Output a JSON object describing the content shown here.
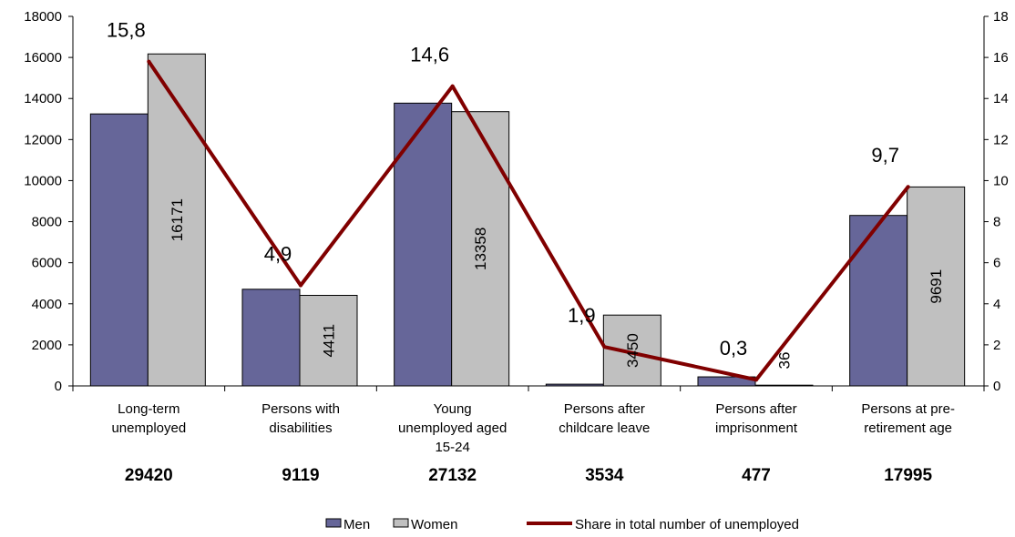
{
  "chart_data": {
    "type": "bar",
    "categories": [
      [
        "Long-term",
        "unemployed"
      ],
      [
        "Persons with",
        "disabilities"
      ],
      [
        "Young",
        "unemployed aged",
        "15-24"
      ],
      [
        "Persons after",
        "childcare leave"
      ],
      [
        "Persons after",
        "imprisonment"
      ],
      [
        "Persons at pre-",
        "retirement age"
      ]
    ],
    "totals": [
      "29420",
      "9119",
      "27132",
      "3534",
      "477",
      "17995"
    ],
    "series": [
      {
        "name": "Men",
        "values": [
          13249,
          4708,
          13774,
          84,
          441,
          8304
        ],
        "color": "#666699"
      },
      {
        "name": "Women",
        "values": [
          16171,
          4411,
          13358,
          3450,
          36,
          9691
        ],
        "color": "#c0c0c0",
        "labels": [
          "16171",
          "4411",
          "13358",
          "3450",
          "36",
          "9691"
        ]
      }
    ],
    "line_series": {
      "name": "Share in total number of unemployed",
      "values": [
        15.8,
        4.9,
        14.6,
        1.9,
        0.3,
        9.7
      ],
      "labels": [
        "15,8",
        "4,9",
        "14,6",
        "1,9",
        "0,3",
        "9,7"
      ],
      "color": "#800000",
      "axis": "right"
    },
    "y_left": {
      "ylim": [
        0,
        18000
      ],
      "ticks": [
        "0",
        "2000",
        "4000",
        "6000",
        "8000",
        "10000",
        "12000",
        "14000",
        "16000",
        "18000"
      ]
    },
    "y_right": {
      "ylim": [
        0,
        18
      ],
      "ticks": [
        "0",
        "2",
        "4",
        "6",
        "8",
        "10",
        "12",
        "14",
        "16",
        "18"
      ]
    },
    "grid": false,
    "legend": "bottom"
  }
}
